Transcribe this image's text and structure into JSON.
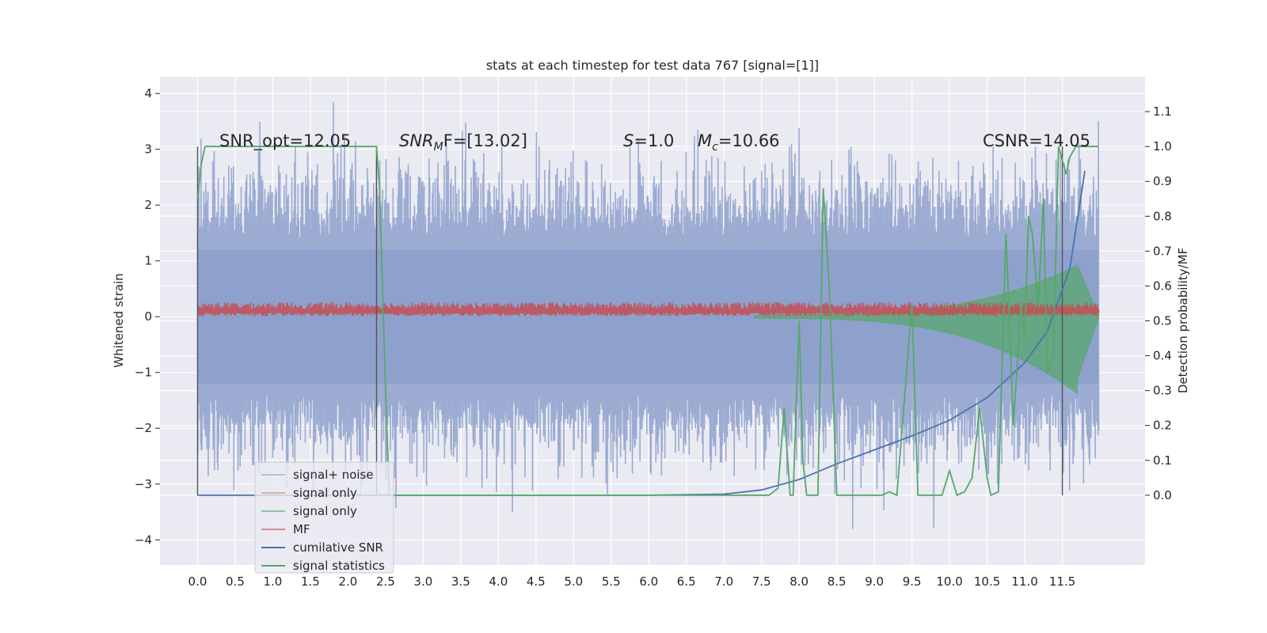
{
  "chart_data": {
    "type": "line",
    "title": "stats at each timestep for test data 767 [signal=[1]]",
    "xlabel": "",
    "ylabel": "Whitened strain",
    "ylabel_right": "Detection probability/MF",
    "xlim": [
      -0.5,
      12.6
    ],
    "ylim": [
      -4.45,
      4.3
    ],
    "ylim_right": [
      -0.2,
      1.2
    ],
    "x_ticks": [
      "0.0",
      "0.5",
      "1.0",
      "1.5",
      "2.0",
      "2.5",
      "3.0",
      "3.5",
      "4.0",
      "4.5",
      "5.0",
      "5.5",
      "6.0",
      "6.5",
      "7.0",
      "7.5",
      "8.0",
      "8.5",
      "9.0",
      "9.5",
      "10.0",
      "10.5",
      "11.0",
      "11.5"
    ],
    "y_ticks_left": [
      "4",
      "3",
      "2",
      "1",
      "0",
      "−1",
      "−2",
      "−3",
      "−4"
    ],
    "y_ticks_right": [
      "1.1",
      "1.0",
      "0.9",
      "0.8",
      "0.7",
      "0.6",
      "0.5",
      "0.4",
      "0.3",
      "0.2",
      "0.1",
      "0.0"
    ],
    "grid": true,
    "legend_position": "lower-left",
    "annotations": {
      "snr_opt": "SNR_opt=12.05",
      "snr_mf_italic": "SNR",
      "snr_mf_sub": "M",
      "snr_mf_rest": "F=[13.02]",
      "s_italic": "S",
      "s_rest": "=1.0",
      "mc_italic": "M",
      "mc_sub": "c",
      "mc_rest": "=10.66",
      "csnr": "CSNR=14.05"
    },
    "vertical_markers": [
      0.0,
      2.38,
      11.5
    ],
    "series": [
      {
        "name": "signal+ noise",
        "color": "#8da0cb",
        "style": "noise band, amplitude ≈1.2–3.5 around 0, t 0–11.98"
      },
      {
        "name": "signal only",
        "color": "#dd8452",
        "style": "ghost legend entry"
      },
      {
        "name": "signal only",
        "color": "#55a868",
        "style": "chirp, amplitude growing from ≈0 to ≈0.9 near t=11.6"
      },
      {
        "name": "MF",
        "color": "#c44e52",
        "style": "noise band ≈0.0–0.25"
      },
      {
        "name": "cumilative SNR",
        "color": "#4c72b0",
        "x": [
          0.0,
          6.0,
          7.0,
          7.5,
          8.0,
          8.5,
          9.0,
          9.5,
          10.0,
          10.5,
          11.0,
          11.3,
          11.6,
          11.8
        ],
        "y_right": [
          0.0,
          0.0,
          0.003,
          0.015,
          0.045,
          0.09,
          0.13,
          0.17,
          0.215,
          0.28,
          0.38,
          0.47,
          0.65,
          0.93
        ]
      },
      {
        "name": "signal statistics",
        "color": "#55a868",
        "x": [
          0.0,
          0.05,
          0.1,
          0.2,
          2.2,
          2.38,
          2.42,
          2.5,
          2.55,
          2.6,
          3.1,
          7.6,
          7.72,
          7.8,
          7.88,
          7.92,
          8.0,
          8.05,
          8.1,
          8.25,
          8.32,
          8.4,
          8.5,
          8.6,
          9.0,
          9.1,
          9.2,
          9.3,
          9.5,
          9.58,
          9.65,
          9.9,
          10.0,
          10.1,
          10.2,
          10.3,
          10.4,
          10.5,
          10.55,
          10.65,
          10.75,
          10.85,
          10.95,
          11.0,
          11.05,
          11.1,
          11.18,
          11.25,
          11.3,
          11.38,
          11.45,
          11.55,
          11.6,
          11.68,
          11.75,
          11.85,
          11.98
        ],
        "y_right": [
          0.85,
          0.95,
          1.0,
          1.0,
          1.0,
          1.0,
          0.88,
          0.3,
          0.0,
          0.0,
          0.0,
          0.0,
          0.02,
          0.25,
          0.0,
          0.0,
          0.5,
          0.1,
          0.0,
          0.0,
          0.88,
          0.6,
          0.0,
          0.0,
          0.0,
          0.0,
          0.01,
          0.0,
          0.55,
          0.0,
          0.0,
          0.0,
          0.07,
          0.0,
          0.01,
          0.05,
          0.25,
          0.05,
          0.0,
          0.01,
          0.75,
          0.2,
          0.55,
          0.45,
          0.8,
          0.75,
          0.55,
          0.85,
          0.35,
          0.4,
          1.0,
          0.92,
          0.97,
          1.0,
          1.0,
          1.0,
          1.0
        ]
      }
    ]
  }
}
